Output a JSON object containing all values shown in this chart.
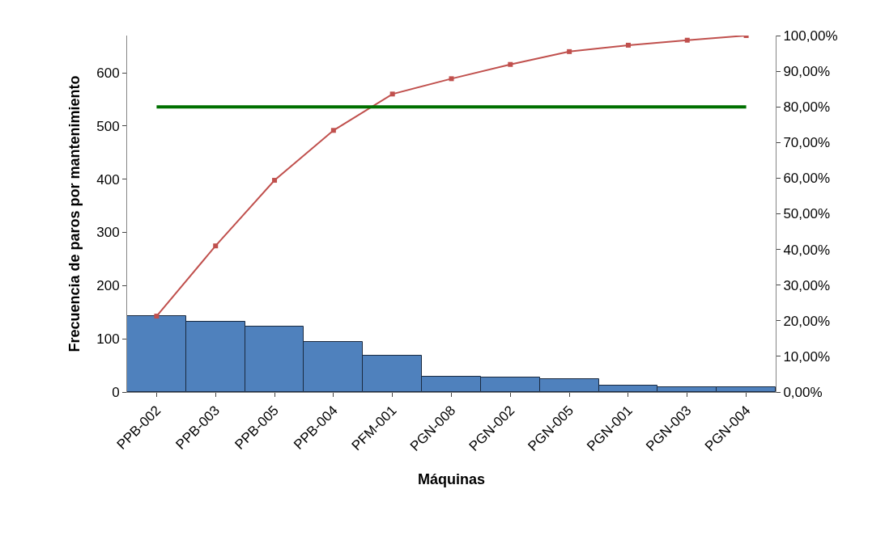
{
  "chart_data": {
    "type": "bar",
    "xlabel": "Máquinas",
    "ylabel": "Frecuencia de paros por mantenimiento",
    "categories": [
      "PPB-002",
      "PPB-003",
      "PPB-005",
      "PPB-004",
      "PFM-001",
      "PGN-008",
      "PGN-002",
      "PGN-005",
      "PGN-001",
      "PGN-003",
      "PGN-004"
    ],
    "series": [
      {
        "color": "#4f81bd",
        "values": [
          143,
          132,
          123,
          94,
          68,
          29,
          27,
          24,
          12,
          9,
          9
        ]
      },
      {
        "type": "line",
        "axis": "y2",
        "color": "#c0504d",
        "marker": "square",
        "values": [
          21.3,
          41.0,
          59.4,
          73.4,
          83.6,
          87.9,
          91.9,
          95.5,
          97.3,
          98.7,
          100
        ]
      }
    ],
    "ylim": [
      0,
      670
    ],
    "yticks": [
      0,
      100,
      200,
      300,
      400,
      500,
      600
    ],
    "y2lim": [
      0,
      100
    ],
    "y2ticks": [
      {
        "value": 0,
        "label": "0,00%"
      },
      {
        "value": 10,
        "label": "10,00%"
      },
      {
        "value": 20,
        "label": "20,00%"
      },
      {
        "value": 30,
        "label": "30,00%"
      },
      {
        "value": 40,
        "label": "40,00%"
      },
      {
        "value": 50,
        "label": "50,00%"
      },
      {
        "value": 60,
        "label": "60,00%"
      },
      {
        "value": 70,
        "label": "70,00%"
      },
      {
        "value": 80,
        "label": "80,00%"
      },
      {
        "value": 90,
        "label": "90,00%"
      },
      {
        "value": 100,
        "label": "100,00%"
      }
    ],
    "ref_lines": [
      {
        "axis": "y2",
        "value": 80,
        "color": "#007000"
      }
    ]
  }
}
